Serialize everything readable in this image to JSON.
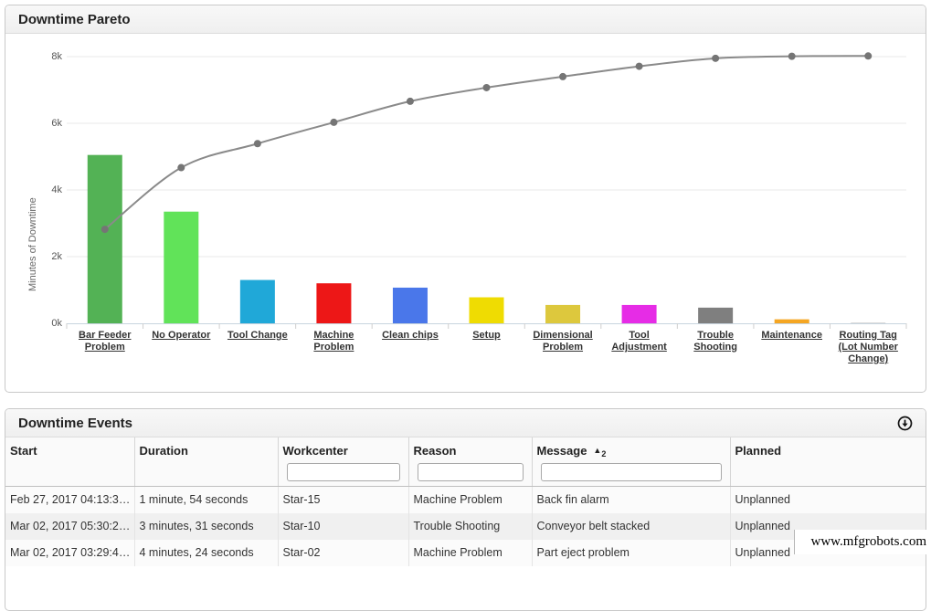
{
  "pareto": {
    "title": "Downtime Pareto",
    "y_axis_label": "Minutes of Downtime"
  },
  "chart_data": {
    "type": "bar",
    "subtype": "pareto-with-cumulative-line",
    "title": "Downtime Pareto",
    "ylabel": "Minutes of Downtime",
    "categories": [
      "Bar Feeder Problem",
      "No Operator",
      "Tool Change",
      "Machine Problem",
      "Clean chips",
      "Setup",
      "Dimensional Problem",
      "Tool Adjustment",
      "Trouble Shooting",
      "Maintenance",
      "Routing Tag (Lot Number Change)"
    ],
    "values": [
      5050,
      3350,
      1300,
      1200,
      1070,
      780,
      550,
      550,
      470,
      120,
      20
    ],
    "bar_colors": [
      "#53b255",
      "#61e359",
      "#20a8d8",
      "#ed1717",
      "#4a77ea",
      "#efdc02",
      "#ddc83d",
      "#e62ce6",
      "#7f7f7f",
      "#f5a623",
      "#cccccc"
    ],
    "series": [
      {
        "name": "cumulative",
        "type": "line",
        "values": [
          2820,
          4670,
          5390,
          6030,
          6660,
          7070,
          7400,
          7710,
          7950,
          8010,
          8020
        ]
      }
    ],
    "line_color": "#8a8a8a",
    "marker_color": "#757575",
    "ylim": [
      0,
      8400
    ],
    "yticks": [
      {
        "v": 0,
        "label": "0k"
      },
      {
        "v": 2000,
        "label": "2k"
      },
      {
        "v": 4000,
        "label": "4k"
      },
      {
        "v": 6000,
        "label": "6k"
      },
      {
        "v": 8000,
        "label": "8k"
      }
    ],
    "grid": true,
    "legend": "none"
  },
  "events": {
    "title": "Downtime Events",
    "columns": [
      {
        "label": "Start",
        "filter": false
      },
      {
        "label": "Duration",
        "filter": false
      },
      {
        "label": "Workcenter",
        "filter": true
      },
      {
        "label": "Reason",
        "filter": true
      },
      {
        "label": "Message",
        "filter": true,
        "sort_icon": "▲",
        "sort_priority": "2"
      },
      {
        "label": "Planned",
        "filter": false
      }
    ],
    "rows": [
      {
        "start": "Feb 27, 2017 04:13:3…",
        "duration": "1 minute, 54 seconds",
        "workcenter": "Star-15",
        "reason": "Machine Problem",
        "message": "Back fin alarm",
        "planned": "Unplanned"
      },
      {
        "start": "Mar 02, 2017 05:30:2…",
        "duration": "3 minutes, 31 seconds",
        "workcenter": "Star-10",
        "reason": "Trouble Shooting",
        "message": "Conveyor belt stacked",
        "planned": "Unplanned"
      },
      {
        "start": "Mar 02, 2017 03:29:4…",
        "duration": "4 minutes, 24 seconds",
        "workcenter": "Star-02",
        "reason": "Machine Problem",
        "message": "Part eject problem",
        "planned": "Unplanned"
      }
    ]
  },
  "watermark": "www.mfgrobots.com"
}
